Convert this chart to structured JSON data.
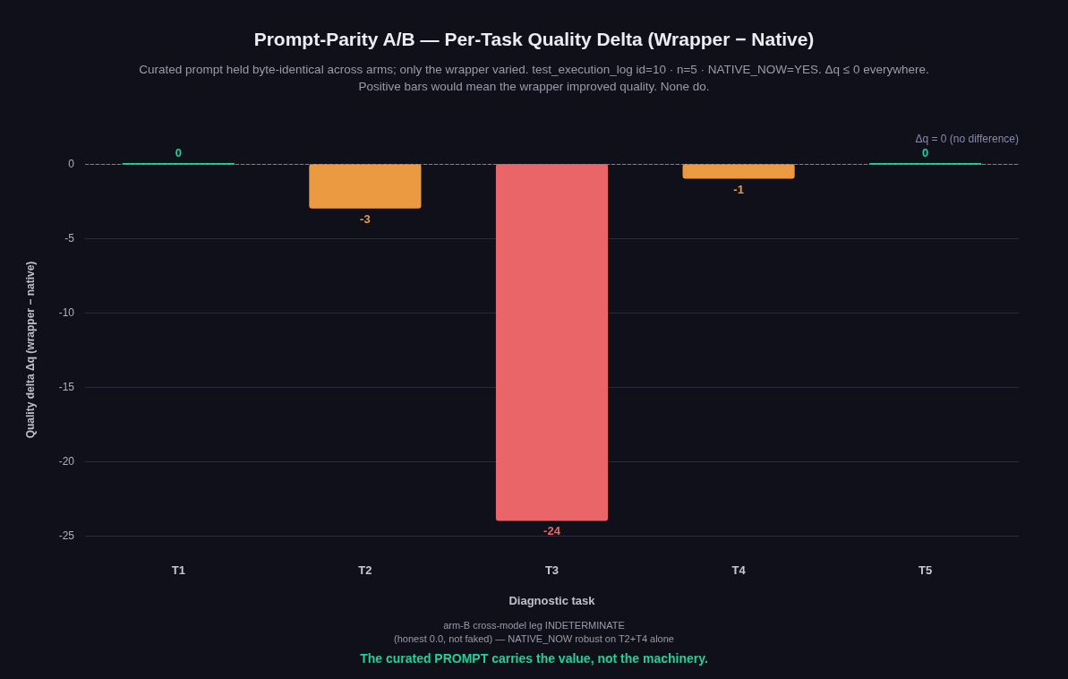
{
  "chart_data": {
    "type": "bar",
    "title": "Prompt-Parity A/B — Per-Task Quality Delta (Wrapper − Native)",
    "subtitle": "Curated prompt held byte-identical across arms; only the wrapper varied. test_execution_log id=10 · n=5 · NATIVE_NOW=YES. Δq ≤ 0 everywhere.\nPositive bars would mean the wrapper improved quality. None do.",
    "xlabel": "Diagnostic task",
    "ylabel": "Quality delta Δq (wrapper − native)",
    "categories": [
      "T1",
      "T2",
      "T3",
      "T4",
      "T5"
    ],
    "values": [
      0,
      -3,
      -24,
      -1,
      0
    ],
    "colors": [
      "#1ed39a",
      "#ec9a42",
      "#ea6568",
      "#ec9a42",
      "#1ed39a"
    ],
    "data_labels": true,
    "ylim": [
      -25,
      0
    ],
    "yticks": [
      0,
      -5,
      -10,
      -15,
      -20,
      -25
    ],
    "grid": "y",
    "ref_lines": [
      {
        "axis": "y",
        "value": 0,
        "label": "Δq = 0 (no difference)",
        "color": "#7c7ca8",
        "line_style": "dashed"
      }
    ],
    "annotations": [
      "arm-B cross-model leg INDETERMINATE\n(honest 0.0, not faked) — NATIVE_NOW robust on T2+T4 alone",
      "The curated PROMPT carries the value, not the machinery."
    ]
  }
}
